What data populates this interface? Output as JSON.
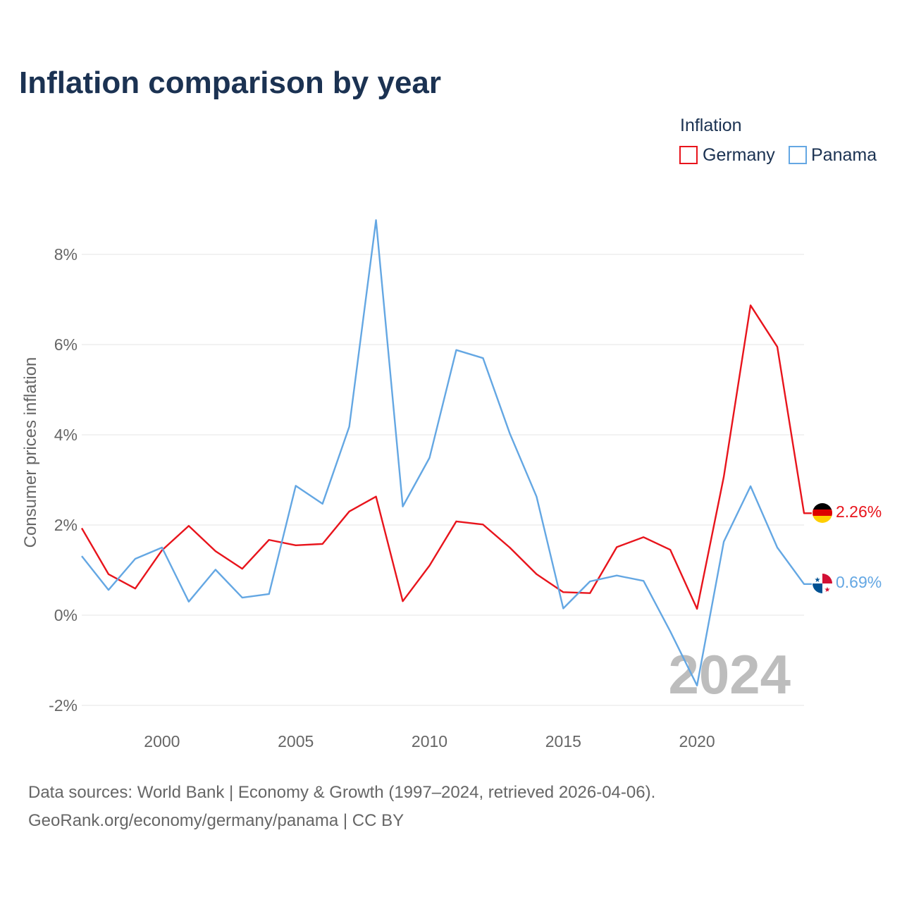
{
  "title": "Inflation comparison by year",
  "legend": {
    "title": "Inflation",
    "items": [
      {
        "name": "Germany",
        "color": "#e8141c"
      },
      {
        "name": "Panama",
        "color": "#64a7e3"
      }
    ]
  },
  "year_watermark": "2024",
  "source": {
    "line1": "Data sources: World Bank | Economy & Growth (1997–2024, retrieved 2026-04-06).",
    "line2": "GeoRank.org/economy/germany/panama | CC BY"
  },
  "chart_data": {
    "type": "line",
    "title": "Inflation comparison by year",
    "xlabel": "",
    "ylabel": "Consumer prices inflation",
    "x": [
      1997,
      1998,
      1999,
      2000,
      2001,
      2002,
      2003,
      2004,
      2005,
      2006,
      2007,
      2008,
      2009,
      2010,
      2011,
      2012,
      2013,
      2014,
      2015,
      2016,
      2017,
      2018,
      2019,
      2020,
      2021,
      2022,
      2023,
      2024
    ],
    "xlim": [
      1997,
      2024
    ],
    "ylim": [
      -2,
      9
    ],
    "x_ticks": [
      2000,
      2005,
      2010,
      2015,
      2020
    ],
    "y_ticks": [
      -2,
      0,
      2,
      4,
      6,
      8
    ],
    "y_tick_labels": [
      "-2%",
      "0%",
      "2%",
      "4%",
      "6%",
      "8%"
    ],
    "grid": true,
    "legend_position": "top-right",
    "series": [
      {
        "name": "Germany",
        "color": "#e8141c",
        "end_label": "2.26%",
        "values": [
          1.93,
          0.91,
          0.59,
          1.44,
          1.98,
          1.42,
          1.03,
          1.67,
          1.55,
          1.58,
          2.3,
          2.63,
          0.31,
          1.1,
          2.08,
          2.01,
          1.5,
          0.91,
          0.51,
          0.49,
          1.51,
          1.73,
          1.45,
          0.14,
          3.07,
          6.87,
          5.95,
          2.26
        ]
      },
      {
        "name": "Panama",
        "color": "#64a7e3",
        "end_label": "0.69%",
        "values": [
          1.31,
          0.56,
          1.25,
          1.5,
          0.3,
          1.01,
          0.39,
          0.47,
          2.87,
          2.47,
          4.18,
          8.76,
          2.41,
          3.49,
          5.88,
          5.7,
          4.03,
          2.63,
          0.15,
          0.75,
          0.88,
          0.76,
          -0.36,
          -1.56,
          1.63,
          2.86,
          1.5,
          0.69
        ]
      }
    ]
  }
}
